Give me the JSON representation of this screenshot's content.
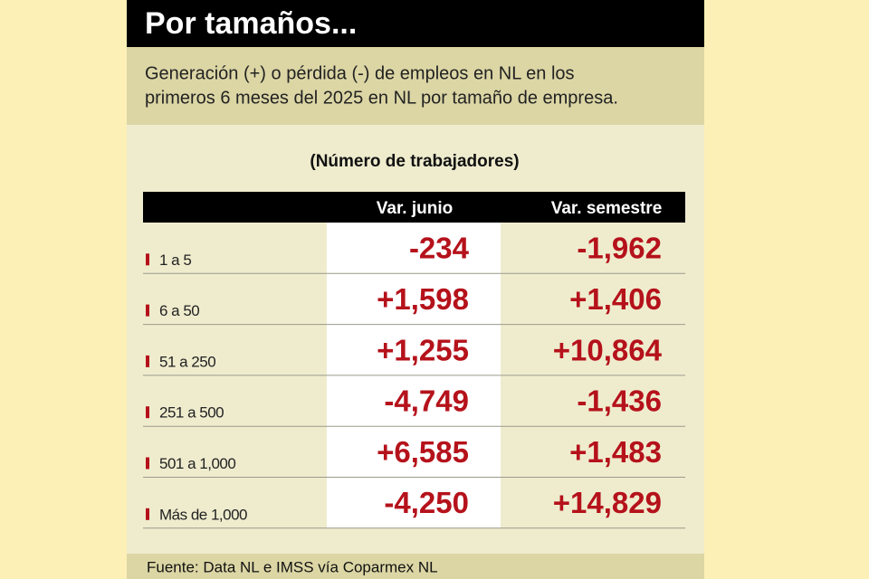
{
  "header": {
    "title": "Por tamaños...",
    "subtitle": [
      "Generación (+) o pérdida (-) de empleos en NL en los",
      "primeros 6 meses del 2025 en NL por tamaño de empresa."
    ]
  },
  "table": {
    "caption": "(Número de trabajadores)",
    "columns": [
      "Var. junio",
      "Var. semestre"
    ],
    "rows": [
      [
        "1 a 5",
        "-234",
        "-1,962"
      ],
      [
        "6 a 50",
        "+1,598",
        "+1,406"
      ],
      [
        "51 a 250",
        "+1,255",
        "+10,864"
      ],
      [
        "251 a 500",
        "-4,749",
        "-1,436"
      ],
      [
        "501 a 1,000",
        "+6,585",
        "+1,483"
      ],
      [
        "Más de 1,000",
        "-4,250",
        "+14,829"
      ]
    ]
  },
  "footer": {
    "source": "Fuente: Data NL e IMSS vía Coparmex NL"
  }
}
